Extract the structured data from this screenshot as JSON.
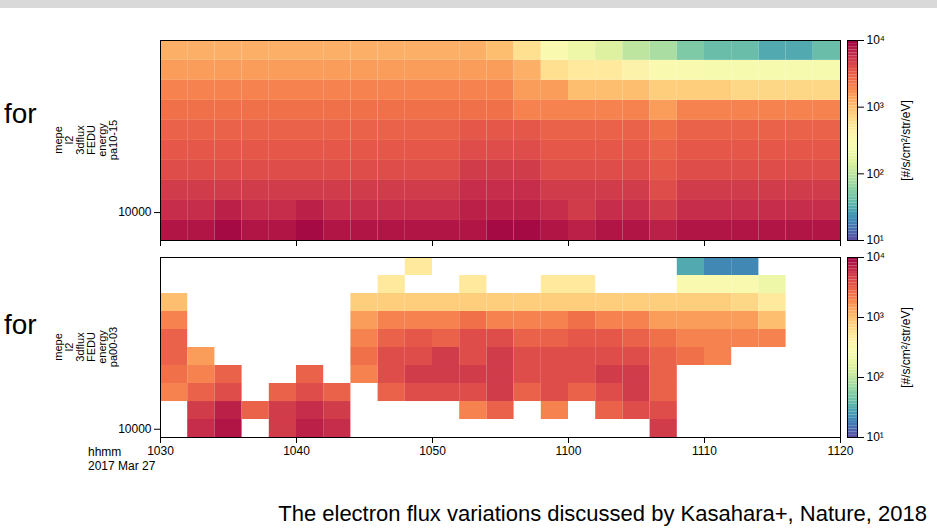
{
  "chart_data": [
    {
      "type": "heatmap",
      "annotation": "for",
      "ylabel": [
        "mepe",
        "l2",
        "3dflux",
        "FEDU",
        "energy",
        "pa10-15"
      ],
      "log": "y",
      "tick_labels": "y",
      "xlim": [
        "2017-03-27T10:30:00Z",
        "2017-03-27T11:20:00Z"
      ],
      "xticks": [
        {
          "value": "2017-03-27T10:30:00Z",
          "label": "1030"
        },
        {
          "value": "2017-03-27T10:40:00Z",
          "label": "1040"
        },
        {
          "value": "2017-03-27T10:50:00Z",
          "label": "1050"
        },
        {
          "value": "2017-03-27T11:00:00Z",
          "label": "1100"
        },
        {
          "value": "2017-03-27T11:10:00Z",
          "label": "1110"
        },
        {
          "value": "2017-03-27T11:20:00Z",
          "label": "1120"
        }
      ],
      "ylim": [
        7000,
        90000
      ],
      "yticks": [
        10000
      ],
      "time_bins": [
        "2017-03-27T10:30:00Z",
        "2017-03-27T10:32:00Z",
        "2017-03-27T10:34:00Z",
        "2017-03-27T10:36:00Z",
        "2017-03-27T10:38:00Z",
        "2017-03-27T10:40:00Z",
        "2017-03-27T10:42:00Z",
        "2017-03-27T10:44:00Z",
        "2017-03-27T10:46:00Z",
        "2017-03-27T10:48:00Z",
        "2017-03-27T10:50:00Z",
        "2017-03-27T10:52:00Z",
        "2017-03-27T10:54:00Z",
        "2017-03-27T10:56:00Z",
        "2017-03-27T10:58:00Z",
        "2017-03-27T11:00:00Z",
        "2017-03-27T11:02:00Z",
        "2017-03-27T11:04:00Z",
        "2017-03-27T11:06:00Z",
        "2017-03-27T11:08:00Z",
        "2017-03-27T11:10:00Z",
        "2017-03-27T11:12:00Z",
        "2017-03-27T11:14:00Z",
        "2017-03-27T11:16:00Z",
        "2017-03-27T11:18:00Z",
        "2017-03-27T11:20:00Z"
      ],
      "energy_bins": [
        7000,
        9040,
        11670,
        15070,
        19460,
        25120,
        32440,
        41880,
        54080,
        69820,
        90000
      ],
      "cells": [
        [
          8000,
          8000,
          9000,
          8000,
          8000,
          9000,
          8000,
          8000,
          8000,
          8000,
          8000,
          8000,
          9000,
          9000,
          8000,
          7000,
          8000,
          8000,
          7000,
          8000,
          8000,
          8000,
          8000,
          8000,
          8000
        ],
        [
          6000,
          6000,
          7000,
          6000,
          6000,
          7000,
          6000,
          6000,
          6000,
          6000,
          6000,
          7000,
          7000,
          7000,
          6000,
          5000,
          6000,
          6000,
          5000,
          6000,
          6000,
          6000,
          6000,
          6000,
          6000
        ],
        [
          5000,
          5000,
          5000,
          5000,
          5000,
          5000,
          5000,
          5000,
          5000,
          5000,
          5000,
          6000,
          6000,
          6000,
          5000,
          5000,
          5000,
          5000,
          4000,
          5000,
          5000,
          5000,
          5000,
          5000,
          5000
        ],
        [
          4000,
          4000,
          4000,
          4000,
          4000,
          4000,
          4000,
          4000,
          4000,
          4000,
          4000,
          5000,
          5000,
          5000,
          4000,
          4000,
          4000,
          4000,
          3500,
          4000,
          4000,
          4000,
          4000,
          4000,
          4000
        ],
        [
          3500,
          3500,
          3500,
          3500,
          3500,
          3500,
          3500,
          3500,
          3500,
          3500,
          3500,
          4000,
          4000,
          4000,
          3500,
          3500,
          3500,
          3500,
          3000,
          3500,
          3500,
          3500,
          3500,
          3500,
          3500
        ],
        [
          3000,
          3000,
          3000,
          3000,
          3000,
          3000,
          3000,
          3000,
          3000,
          3000,
          3000,
          3500,
          3500,
          3500,
          3000,
          3000,
          3000,
          3000,
          2500,
          3000,
          3000,
          3000,
          3000,
          3000,
          3000
        ],
        [
          2500,
          2500,
          2500,
          2500,
          2500,
          2500,
          2500,
          2500,
          2500,
          2500,
          2500,
          2500,
          2500,
          2000,
          2000,
          2000,
          2000,
          2000,
          1500,
          2000,
          2000,
          2000,
          2000,
          2000,
          2000
        ],
        [
          2000,
          2000,
          2000,
          2000,
          2000,
          2000,
          2000,
          2000,
          2000,
          2000,
          2000,
          2000,
          2000,
          1500,
          1500,
          1000,
          1000,
          1000,
          800,
          800,
          800,
          700,
          700,
          700,
          700
        ],
        [
          1500,
          1500,
          1500,
          1500,
          1500,
          1500,
          1500,
          1500,
          1500,
          1500,
          1500,
          1500,
          1500,
          1200,
          600,
          500,
          500,
          400,
          300,
          300,
          250,
          250,
          250,
          250,
          250
        ],
        [
          1200,
          1200,
          1200,
          1200,
          1200,
          1200,
          1200,
          1200,
          1200,
          1200,
          1200,
          1200,
          1000,
          600,
          300,
          200,
          150,
          100,
          80,
          50,
          40,
          40,
          30,
          30,
          40
        ]
      ],
      "colorbar": {
        "range": [
          10,
          10000
        ],
        "ticks": [
          {
            "value": 10,
            "label": "10¹"
          },
          {
            "value": 100,
            "label": "10²"
          },
          {
            "value": 1000,
            "label": "10³"
          },
          {
            "value": 10000,
            "label": "10⁴"
          }
        ],
        "label": "[#/s/cm²/str/eV]"
      }
    },
    {
      "type": "heatmap",
      "annotation": "for",
      "ylabel": [
        "mepe",
        "l2",
        "3dflux",
        "FEDU",
        "energy",
        "pa00-03"
      ],
      "xlabel": [
        "hhmm",
        "2017 Mar 27"
      ],
      "log": "y",
      "xlim": [
        "2017-03-27T10:30:00Z",
        "2017-03-27T11:20:00Z"
      ],
      "xticks": [
        {
          "value": "2017-03-27T10:30:00Z",
          "label": "1030"
        },
        {
          "value": "2017-03-27T10:40:00Z",
          "label": "1040"
        },
        {
          "value": "2017-03-27T10:50:00Z",
          "label": "1050"
        },
        {
          "value": "2017-03-27T11:00:00Z",
          "label": "1100"
        },
        {
          "value": "2017-03-27T11:10:00Z",
          "label": "1110"
        },
        {
          "value": "2017-03-27T11:20:00Z",
          "label": "1120"
        }
      ],
      "ylim": [
        9000,
        90000
      ],
      "yticks": [
        10000
      ],
      "time_bins": [
        "2017-03-27T10:30:00Z",
        "2017-03-27T10:32:00Z",
        "2017-03-27T10:34:00Z",
        "2017-03-27T10:36:00Z",
        "2017-03-27T10:38:00Z",
        "2017-03-27T10:40:00Z",
        "2017-03-27T10:42:00Z",
        "2017-03-27T10:44:00Z",
        "2017-03-27T10:46:00Z",
        "2017-03-27T10:48:00Z",
        "2017-03-27T10:50:00Z",
        "2017-03-27T10:52:00Z",
        "2017-03-27T10:54:00Z",
        "2017-03-27T10:56:00Z",
        "2017-03-27T10:58:00Z",
        "2017-03-27T11:00:00Z",
        "2017-03-27T11:02:00Z",
        "2017-03-27T11:04:00Z",
        "2017-03-27T11:06:00Z",
        "2017-03-27T11:08:00Z",
        "2017-03-27T11:10:00Z",
        "2017-03-27T11:12:00Z",
        "2017-03-27T11:14:00Z",
        "2017-03-27T11:16:00Z",
        "2017-03-27T11:18:00Z",
        "2017-03-27T11:20:00Z"
      ],
      "energy_bins": [
        9000,
        11330,
        14260,
        17960,
        22610,
        28460,
        35830,
        45110,
        56790,
        71490,
        90000
      ],
      "cells": [
        [
          null,
          6000,
          8000,
          null,
          5000,
          7000,
          6000,
          null,
          null,
          null,
          null,
          null,
          null,
          null,
          null,
          null,
          null,
          null,
          5000,
          null,
          null,
          null,
          null,
          null,
          null
        ],
        [
          null,
          5000,
          7000,
          3000,
          5000,
          6000,
          5000,
          null,
          null,
          null,
          null,
          2000,
          3000,
          null,
          2000,
          null,
          3000,
          4000,
          4000,
          null,
          null,
          null,
          null,
          null,
          null
        ],
        [
          2000,
          3000,
          4000,
          null,
          3000,
          4000,
          3000,
          null,
          3000,
          4000,
          4000,
          4000,
          5000,
          3000,
          4000,
          3000,
          4000,
          5000,
          3000,
          null,
          null,
          null,
          null,
          null,
          null
        ],
        [
          2500,
          2000,
          3000,
          null,
          null,
          3000,
          null,
          2000,
          4000,
          5000,
          5000,
          5000,
          5000,
          4000,
          4000,
          4000,
          5000,
          5000,
          3000,
          null,
          null,
          null,
          null,
          null,
          null
        ],
        [
          3000,
          1500,
          null,
          null,
          null,
          null,
          null,
          2500,
          4000,
          4000,
          5000,
          4000,
          5000,
          4000,
          4000,
          4000,
          4000,
          4000,
          3000,
          2500,
          2000,
          null,
          null,
          null,
          null
        ],
        [
          3000,
          null,
          null,
          null,
          null,
          null,
          null,
          2000,
          3000,
          3500,
          3000,
          4000,
          4000,
          3000,
          3000,
          3500,
          3500,
          3000,
          2500,
          2000,
          2000,
          2000,
          2000,
          null,
          null
        ],
        [
          2000,
          null,
          null,
          null,
          null,
          null,
          null,
          1500,
          2000,
          2000,
          2000,
          2500,
          2000,
          2000,
          2000,
          2500,
          2000,
          2000,
          1500,
          1500,
          1500,
          1500,
          1000,
          null,
          null
        ],
        [
          1000,
          null,
          null,
          null,
          null,
          null,
          null,
          800,
          800,
          800,
          800,
          800,
          800,
          800,
          800,
          800,
          800,
          800,
          800,
          800,
          800,
          700,
          500,
          null,
          null
        ],
        [
          null,
          null,
          null,
          null,
          null,
          null,
          null,
          null,
          500,
          null,
          null,
          500,
          null,
          null,
          500,
          500,
          null,
          null,
          null,
          300,
          300,
          300,
          200,
          null,
          null
        ],
        [
          null,
          null,
          null,
          null,
          null,
          null,
          null,
          null,
          null,
          500,
          null,
          null,
          null,
          null,
          null,
          null,
          null,
          null,
          null,
          30,
          20,
          20,
          null,
          null,
          null
        ]
      ],
      "colorbar": {
        "range": [
          10,
          10000
        ],
        "ticks": [
          {
            "value": 10,
            "label": "10¹"
          },
          {
            "value": 100,
            "label": "10²"
          },
          {
            "value": 1000,
            "label": "10³"
          },
          {
            "value": 10000,
            "label": "10⁴"
          }
        ],
        "label": "[#/s/cm²/str/eV]"
      }
    }
  ],
  "caption": "The electron flux variations discussed by Kasahara+, Nature, 2018"
}
